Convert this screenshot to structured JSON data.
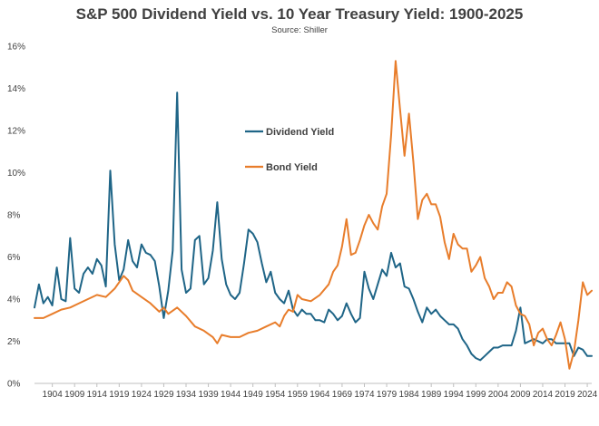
{
  "chart_data": {
    "type": "line",
    "title": "S&P 500 Dividend Yield vs. 10 Year Treasury Yield: 1900-2025",
    "subtitle": "Source: Shiller",
    "xlabel": "",
    "ylabel": "",
    "xlim": [
      1900,
      2025
    ],
    "ylim": [
      0,
      16
    ],
    "y_ticks": [
      0,
      2,
      4,
      6,
      8,
      10,
      12,
      14,
      16
    ],
    "y_tick_labels": [
      "0%",
      "2%",
      "4%",
      "6%",
      "8%",
      "10%",
      "12%",
      "14%",
      "16%"
    ],
    "x_ticks": [
      1904,
      1909,
      1914,
      1919,
      1924,
      1929,
      1934,
      1939,
      1944,
      1949,
      1954,
      1959,
      1964,
      1969,
      1974,
      1979,
      1984,
      1989,
      1994,
      1999,
      2004,
      2009,
      2014,
      2019,
      2024
    ],
    "x_tick_labels": [
      "1904",
      "1909",
      "1914",
      "1919",
      "1924",
      "1929",
      "1934",
      "1939",
      "1944",
      "1949",
      "1954",
      "1959",
      "1964",
      "1969",
      "1974",
      "1979",
      "1984",
      "1989",
      "1994",
      "1999",
      "2004",
      "2009",
      "2014",
      "2019",
      "2024"
    ],
    "grid": false,
    "legend_position": "upper-center",
    "series": [
      {
        "name": "Dividend Yield",
        "color": "#1f6587",
        "points": [
          [
            1900,
            3.6
          ],
          [
            1901,
            4.7
          ],
          [
            1902,
            3.8
          ],
          [
            1903,
            4.1
          ],
          [
            1904,
            3.7
          ],
          [
            1905,
            5.5
          ],
          [
            1906,
            4.0
          ],
          [
            1907,
            3.9
          ],
          [
            1908,
            6.9
          ],
          [
            1909,
            4.5
          ],
          [
            1910,
            4.3
          ],
          [
            1911,
            5.2
          ],
          [
            1912,
            5.5
          ],
          [
            1913,
            5.2
          ],
          [
            1914,
            5.9
          ],
          [
            1915,
            5.6
          ],
          [
            1916,
            4.6
          ],
          [
            1917,
            10.1
          ],
          [
            1918,
            6.6
          ],
          [
            1919,
            4.9
          ],
          [
            1920,
            5.4
          ],
          [
            1921,
            6.8
          ],
          [
            1922,
            5.8
          ],
          [
            1923,
            5.5
          ],
          [
            1924,
            6.6
          ],
          [
            1925,
            6.2
          ],
          [
            1926,
            6.1
          ],
          [
            1927,
            5.8
          ],
          [
            1928,
            4.6
          ],
          [
            1929,
            3.1
          ],
          [
            1930,
            4.4
          ],
          [
            1931,
            6.3
          ],
          [
            1932,
            13.8
          ],
          [
            1933,
            5.4
          ],
          [
            1934,
            4.3
          ],
          [
            1935,
            4.5
          ],
          [
            1936,
            6.8
          ],
          [
            1937,
            7.0
          ],
          [
            1938,
            4.7
          ],
          [
            1939,
            5.0
          ],
          [
            1940,
            6.3
          ],
          [
            1941,
            8.6
          ],
          [
            1942,
            5.9
          ],
          [
            1943,
            4.7
          ],
          [
            1944,
            4.2
          ],
          [
            1945,
            4.0
          ],
          [
            1946,
            4.3
          ],
          [
            1947,
            5.7
          ],
          [
            1948,
            7.3
          ],
          [
            1949,
            7.1
          ],
          [
            1950,
            6.7
          ],
          [
            1951,
            5.7
          ],
          [
            1952,
            4.8
          ],
          [
            1953,
            5.3
          ],
          [
            1954,
            4.3
          ],
          [
            1955,
            4.0
          ],
          [
            1956,
            3.8
          ],
          [
            1957,
            4.4
          ],
          [
            1958,
            3.5
          ],
          [
            1959,
            3.2
          ],
          [
            1960,
            3.5
          ],
          [
            1961,
            3.3
          ],
          [
            1962,
            3.3
          ],
          [
            1963,
            3.0
          ],
          [
            1964,
            3.0
          ],
          [
            1965,
            2.9
          ],
          [
            1966,
            3.5
          ],
          [
            1967,
            3.3
          ],
          [
            1968,
            3.0
          ],
          [
            1969,
            3.2
          ],
          [
            1970,
            3.8
          ],
          [
            1971,
            3.3
          ],
          [
            1972,
            2.9
          ],
          [
            1973,
            3.1
          ],
          [
            1974,
            5.3
          ],
          [
            1975,
            4.5
          ],
          [
            1976,
            4.0
          ],
          [
            1977,
            4.7
          ],
          [
            1978,
            5.4
          ],
          [
            1979,
            5.1
          ],
          [
            1980,
            6.2
          ],
          [
            1981,
            5.5
          ],
          [
            1982,
            5.7
          ],
          [
            1983,
            4.6
          ],
          [
            1984,
            4.5
          ],
          [
            1985,
            4.0
          ],
          [
            1986,
            3.4
          ],
          [
            1987,
            2.9
          ],
          [
            1988,
            3.6
          ],
          [
            1989,
            3.3
          ],
          [
            1990,
            3.5
          ],
          [
            1991,
            3.2
          ],
          [
            1992,
            3.0
          ],
          [
            1993,
            2.8
          ],
          [
            1994,
            2.8
          ],
          [
            1995,
            2.6
          ],
          [
            1996,
            2.1
          ],
          [
            1997,
            1.8
          ],
          [
            1998,
            1.4
          ],
          [
            1999,
            1.2
          ],
          [
            2000,
            1.1
          ],
          [
            2001,
            1.3
          ],
          [
            2002,
            1.5
          ],
          [
            2003,
            1.7
          ],
          [
            2004,
            1.7
          ],
          [
            2005,
            1.8
          ],
          [
            2006,
            1.8
          ],
          [
            2007,
            1.8
          ],
          [
            2008,
            2.5
          ],
          [
            2009,
            3.6
          ],
          [
            2010,
            1.9
          ],
          [
            2011,
            2.0
          ],
          [
            2012,
            2.1
          ],
          [
            2013,
            2.0
          ],
          [
            2014,
            1.9
          ],
          [
            2015,
            2.1
          ],
          [
            2016,
            2.1
          ],
          [
            2017,
            1.9
          ],
          [
            2018,
            1.9
          ],
          [
            2019,
            1.9
          ],
          [
            2020,
            1.9
          ],
          [
            2021,
            1.3
          ],
          [
            2022,
            1.7
          ],
          [
            2023,
            1.6
          ],
          [
            2024,
            1.3
          ],
          [
            2025,
            1.3
          ]
        ]
      },
      {
        "name": "Bond Yield",
        "color": "#e87d2b",
        "points": [
          [
            1900,
            3.1
          ],
          [
            1902,
            3.1
          ],
          [
            1904,
            3.3
          ],
          [
            1906,
            3.5
          ],
          [
            1908,
            3.6
          ],
          [
            1910,
            3.8
          ],
          [
            1912,
            4.0
          ],
          [
            1914,
            4.2
          ],
          [
            1916,
            4.1
          ],
          [
            1918,
            4.5
          ],
          [
            1919,
            4.8
          ],
          [
            1920,
            5.1
          ],
          [
            1921,
            4.9
          ],
          [
            1922,
            4.4
          ],
          [
            1924,
            4.1
          ],
          [
            1926,
            3.8
          ],
          [
            1928,
            3.4
          ],
          [
            1929,
            3.6
          ],
          [
            1930,
            3.3
          ],
          [
            1932,
            3.6
          ],
          [
            1934,
            3.2
          ],
          [
            1936,
            2.7
          ],
          [
            1938,
            2.5
          ],
          [
            1940,
            2.2
          ],
          [
            1941,
            1.9
          ],
          [
            1942,
            2.3
          ],
          [
            1944,
            2.2
          ],
          [
            1946,
            2.2
          ],
          [
            1948,
            2.4
          ],
          [
            1950,
            2.5
          ],
          [
            1952,
            2.7
          ],
          [
            1954,
            2.9
          ],
          [
            1955,
            2.7
          ],
          [
            1956,
            3.2
          ],
          [
            1957,
            3.5
          ],
          [
            1958,
            3.4
          ],
          [
            1959,
            4.2
          ],
          [
            1960,
            4.0
          ],
          [
            1962,
            3.9
          ],
          [
            1964,
            4.2
          ],
          [
            1966,
            4.7
          ],
          [
            1967,
            5.3
          ],
          [
            1968,
            5.6
          ],
          [
            1969,
            6.5
          ],
          [
            1970,
            7.8
          ],
          [
            1971,
            6.1
          ],
          [
            1972,
            6.2
          ],
          [
            1973,
            6.8
          ],
          [
            1974,
            7.5
          ],
          [
            1975,
            8.0
          ],
          [
            1976,
            7.6
          ],
          [
            1977,
            7.3
          ],
          [
            1978,
            8.4
          ],
          [
            1979,
            9.0
          ],
          [
            1980,
            11.8
          ],
          [
            1981,
            15.3
          ],
          [
            1982,
            13.0
          ],
          [
            1983,
            10.8
          ],
          [
            1984,
            12.8
          ],
          [
            1985,
            10.5
          ],
          [
            1986,
            7.8
          ],
          [
            1987,
            8.7
          ],
          [
            1988,
            9.0
          ],
          [
            1989,
            8.5
          ],
          [
            1990,
            8.5
          ],
          [
            1991,
            7.9
          ],
          [
            1992,
            6.7
          ],
          [
            1993,
            5.9
          ],
          [
            1994,
            7.1
          ],
          [
            1995,
            6.6
          ],
          [
            1996,
            6.4
          ],
          [
            1997,
            6.4
          ],
          [
            1998,
            5.3
          ],
          [
            1999,
            5.6
          ],
          [
            2000,
            6.0
          ],
          [
            2001,
            5.0
          ],
          [
            2002,
            4.6
          ],
          [
            2003,
            4.0
          ],
          [
            2004,
            4.3
          ],
          [
            2005,
            4.3
          ],
          [
            2006,
            4.8
          ],
          [
            2007,
            4.6
          ],
          [
            2008,
            3.7
          ],
          [
            2009,
            3.3
          ],
          [
            2010,
            3.2
          ],
          [
            2011,
            2.8
          ],
          [
            2012,
            1.8
          ],
          [
            2013,
            2.4
          ],
          [
            2014,
            2.6
          ],
          [
            2015,
            2.1
          ],
          [
            2016,
            1.8
          ],
          [
            2017,
            2.3
          ],
          [
            2018,
            2.9
          ],
          [
            2019,
            2.1
          ],
          [
            2020,
            0.7
          ],
          [
            2021,
            1.5
          ],
          [
            2022,
            3.0
          ],
          [
            2023,
            4.8
          ],
          [
            2024,
            4.2
          ],
          [
            2025,
            4.4
          ]
        ]
      }
    ]
  }
}
